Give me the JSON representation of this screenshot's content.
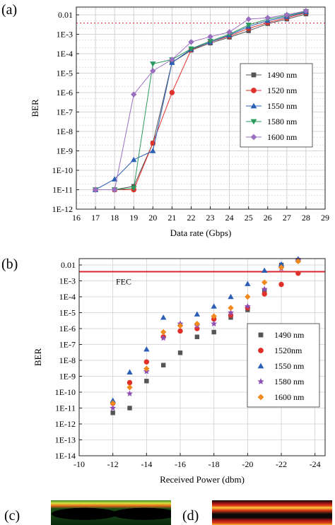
{
  "chart_data": [
    {
      "panel_label": "(a)",
      "type": "line",
      "xlabel": "Data rate (Gbps)",
      "ylabel": "BER",
      "x_ticks": [
        16,
        17,
        18,
        19,
        20,
        21,
        22,
        23,
        24,
        25,
        26,
        27,
        28,
        29
      ],
      "y_ticks": [
        "0.01",
        "1E-3",
        "1E-4",
        "1E-5",
        "1E-6",
        "1E-7",
        "1E-8",
        "1E-9",
        "1E-10",
        "1E-11",
        "1E-12"
      ],
      "y_scale": "log",
      "xlim": [
        16,
        29
      ],
      "ylim_exp": [
        -12,
        -1.6
      ],
      "grid": true,
      "legend_position": "center-right",
      "threshold_line": {
        "value": 0.0038,
        "style": "dotted",
        "color": "#e0344a"
      },
      "series": [
        {
          "name": "1490 nm",
          "marker": "square",
          "color": "#555555",
          "points": [
            [
              17,
              1e-11
            ],
            [
              18,
              1e-11
            ],
            [
              19,
              1.5e-11
            ],
            [
              20,
              2.5e-09
            ],
            [
              21,
              3.5e-05
            ],
            [
              22,
              0.00015
            ],
            [
              23,
              0.00035
            ],
            [
              24,
              0.0007
            ],
            [
              25,
              0.0015
            ],
            [
              26,
              0.0035
            ],
            [
              27,
              0.006
            ],
            [
              28,
              0.011
            ]
          ]
        },
        {
          "name": "1520 nm",
          "marker": "circle",
          "color": "#e0302a",
          "points": [
            [
              17,
              1e-11
            ],
            [
              18,
              1e-11
            ],
            [
              19,
              1e-11
            ],
            [
              20,
              2.5e-09
            ],
            [
              21,
              1e-06
            ],
            [
              22,
              0.00016
            ],
            [
              23,
              0.0004
            ],
            [
              24,
              0.0008
            ],
            [
              25,
              0.002
            ],
            [
              26,
              0.004
            ],
            [
              27,
              0.007
            ],
            [
              28,
              0.013
            ]
          ]
        },
        {
          "name": "1550 nm",
          "marker": "triangle",
          "color": "#2a5fb5",
          "points": [
            [
              17,
              1e-11
            ],
            [
              18,
              3.5e-11
            ],
            [
              19,
              3.5e-10
            ],
            [
              20,
              1e-09
            ],
            [
              21,
              3.5e-05
            ],
            [
              22,
              0.00017
            ],
            [
              23,
              0.0004
            ],
            [
              24,
              0.0009
            ],
            [
              25,
              0.0025
            ],
            [
              26,
              0.005
            ],
            [
              27,
              0.008
            ],
            [
              28,
              0.014
            ]
          ]
        },
        {
          "name": "1580 nm",
          "marker": "triangle-down",
          "color": "#2a9a5e",
          "points": [
            [
              17,
              1e-11
            ],
            [
              18,
              1e-11
            ],
            [
              19,
              1.2e-11
            ],
            [
              20,
              3e-05
            ],
            [
              21,
              5e-05
            ],
            [
              22,
              0.00018
            ],
            [
              23,
              0.00045
            ],
            [
              24,
              0.001
            ],
            [
              25,
              0.003
            ],
            [
              26,
              0.006
            ],
            [
              27,
              0.009
            ],
            [
              28,
              0.015
            ]
          ]
        },
        {
          "name": "1600 nm",
          "marker": "diamond",
          "color": "#9b6fc0",
          "points": [
            [
              17,
              1e-11
            ],
            [
              18,
              1e-11
            ],
            [
              19,
              8e-07
            ],
            [
              20,
              1.3e-05
            ],
            [
              21,
              5e-05
            ],
            [
              22,
              0.0004
            ],
            [
              23,
              0.00075
            ],
            [
              24,
              0.0013
            ],
            [
              25,
              0.006
            ],
            [
              26,
              0.007
            ],
            [
              27,
              0.01
            ],
            [
              28,
              0.016
            ]
          ]
        }
      ]
    },
    {
      "panel_label": "(b)",
      "type": "scatter",
      "xlabel": "Received Power (dbm)",
      "ylabel": "BER",
      "x_ticks": [
        -10,
        -12,
        -14,
        -16,
        -18,
        -20,
        -22,
        -24
      ],
      "y_ticks": [
        "0.01",
        "1E-3",
        "1E-4",
        "1E-5",
        "1E-6",
        "1E-7",
        "1E-8",
        "1E-9",
        "1E-10",
        "1E-11",
        "1E-12",
        "1E-13",
        "1E-14"
      ],
      "y_scale": "log",
      "xlim": [
        -10,
        -24.6
      ],
      "ylim_exp": [
        -14,
        -1.6
      ],
      "grid": true,
      "legend_position": "center-right",
      "fec": {
        "label": "FEC",
        "value": 0.0038,
        "color": "#d9262e"
      },
      "series": [
        {
          "name": "1490 nm",
          "marker": "square",
          "color": "#555555",
          "points": [
            [
              -12,
              5e-12
            ],
            [
              -13,
              1e-11
            ],
            [
              -14,
              5e-10
            ],
            [
              -15,
              5e-09
            ],
            [
              -16,
              3e-08
            ],
            [
              -17,
              3e-07
            ],
            [
              -18,
              6e-07
            ],
            [
              -19,
              5e-06
            ],
            [
              -20,
              1.5e-05
            ],
            [
              -21,
              0.00025
            ],
            [
              -22,
              0.01
            ],
            [
              -23,
              0.02
            ]
          ]
        },
        {
          "name": "1520nm",
          "marker": "circle",
          "color": "#e0302a",
          "points": [
            [
              -12,
              2e-11
            ],
            [
              -13,
              4e-10
            ],
            [
              -14,
              8e-09
            ],
            [
              -15,
              3e-07
            ],
            [
              -16,
              7e-07
            ],
            [
              -17,
              1e-06
            ],
            [
              -18,
              4e-06
            ],
            [
              -19,
              7e-06
            ],
            [
              -20,
              2e-05
            ],
            [
              -21,
              0.00015
            ],
            [
              -22,
              0.0006
            ],
            [
              -23,
              0.003
            ]
          ]
        },
        {
          "name": "1550 nm",
          "marker": "triangle",
          "color": "#2a5fb5",
          "points": [
            [
              -12,
              3e-11
            ],
            [
              -13,
              1.8e-09
            ],
            [
              -14,
              5e-08
            ],
            [
              -15,
              5e-06
            ],
            [
              -16,
              2e-06
            ],
            [
              -17,
              8e-06
            ],
            [
              -18,
              2.5e-05
            ],
            [
              -19,
              0.0001
            ],
            [
              -20,
              0.00065
            ],
            [
              -21,
              0.0045
            ],
            [
              -22,
              0.011
            ],
            [
              -23,
              0.024
            ]
          ]
        },
        {
          "name": "1580 nm",
          "marker": "star",
          "color": "#8e4fb5",
          "points": [
            [
              -12,
              1e-11
            ],
            [
              -13,
              8e-11
            ],
            [
              -14,
              2e-09
            ],
            [
              -15,
              2.5e-07
            ],
            [
              -16,
              2e-06
            ],
            [
              -17,
              1.5e-06
            ],
            [
              -18,
              2e-06
            ],
            [
              -19,
              1e-05
            ],
            [
              -20,
              2.5e-05
            ],
            [
              -21,
              0.0003
            ],
            [
              -22,
              0.006
            ],
            [
              -23,
              0.02
            ]
          ]
        },
        {
          "name": "1600 nm",
          "marker": "diamond",
          "color": "#f08a1e",
          "points": [
            [
              -12,
              2e-11
            ],
            [
              -13,
              2e-10
            ],
            [
              -14,
              3e-09
            ],
            [
              -15,
              6e-07
            ],
            [
              -16,
              1.5e-06
            ],
            [
              -17,
              2e-06
            ],
            [
              -18,
              6e-06
            ],
            [
              -19,
              2e-05
            ],
            [
              -20,
              0.0001
            ],
            [
              -21,
              0.0008
            ],
            [
              -22,
              0.007
            ],
            [
              -23,
              0.017
            ]
          ]
        }
      ]
    }
  ],
  "eye_diagrams": [
    {
      "panel_label": "(c)"
    },
    {
      "panel_label": "(d)"
    }
  ]
}
